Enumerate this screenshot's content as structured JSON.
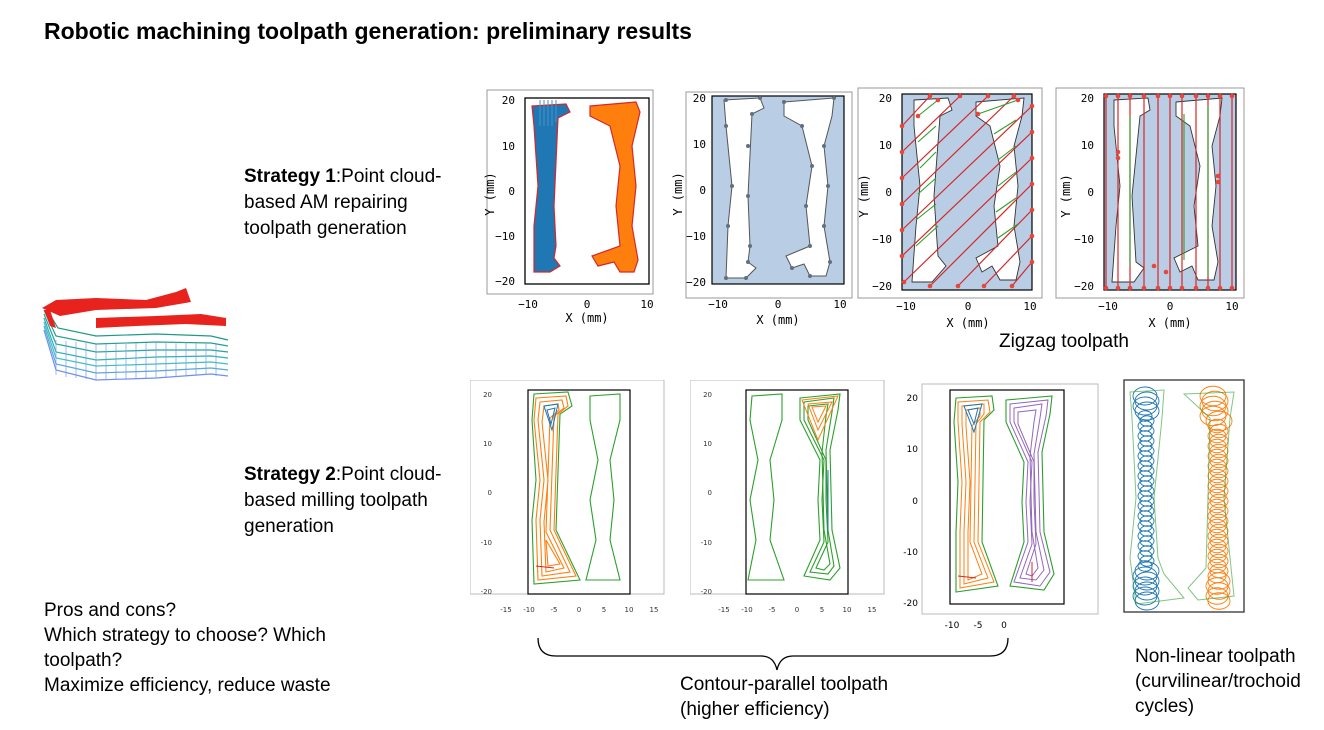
{
  "title": "Robotic machining toolpath generation: preliminary results",
  "strategy1": {
    "bold": "Strategy 1",
    "rest_a": ":Point cloud-",
    "rest_b": "based AM repairing",
    "rest_c": "toolpath generation"
  },
  "strategy2": {
    "bold": "Strategy 2",
    "rest_a": ":Point cloud-",
    "rest_b": "based milling toolpath",
    "rest_c": "generation"
  },
  "questions": [
    "Pros and cons?",
    "Which strategy to choose? Which",
    "toolpath?",
    "Maximize efficiency, reduce waste"
  ],
  "captions": {
    "zigzag": "Zigzag toolpath",
    "contour_1": "Contour-parallel toolpath",
    "contour_2": "(higher efficiency)",
    "nonlinear_1": "Non-linear toolpath",
    "nonlinear_2": "(curvilinear/trochoid",
    "nonlinear_3": "cycles)"
  },
  "plot_axes": {
    "xlabel": "X (mm)",
    "ylabel": "Y (mm)",
    "yticks_top": [
      "20",
      "10",
      "0",
      "−10",
      "−20"
    ],
    "xticks_top": [
      "−10",
      "0",
      "10"
    ],
    "yticks_small": [
      "20",
      "10",
      "0",
      "-10",
      "-20"
    ],
    "xticks_wide": [
      "-15",
      "-10",
      "-5",
      "0",
      "5",
      "10",
      "15"
    ],
    "xticks_narrow": [
      "-10",
      "-5",
      "0"
    ]
  },
  "colors": {
    "blue": "#1f77b4",
    "orange": "#ff7f0e",
    "green": "#2ca02c",
    "red": "#d62728",
    "purple": "#9467bd",
    "fill": "#b9cde4"
  }
}
